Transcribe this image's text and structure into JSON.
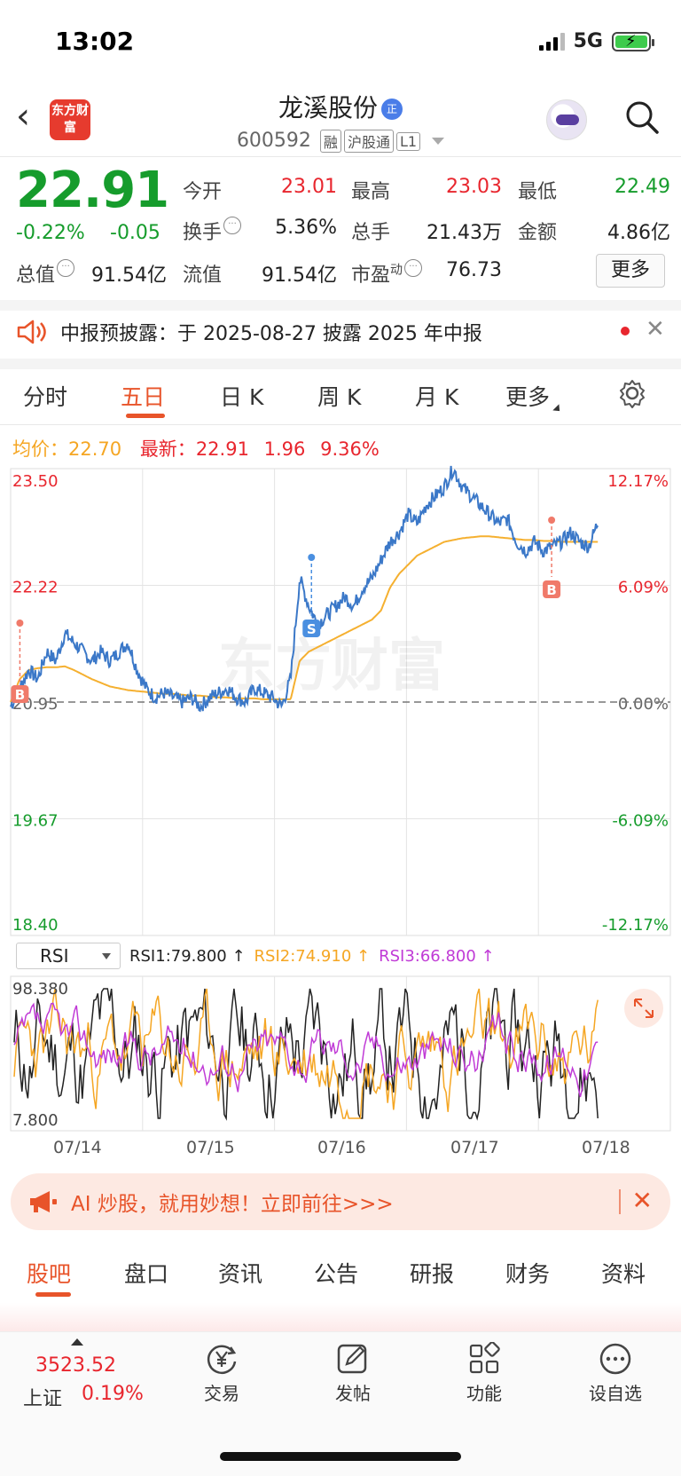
{
  "status": {
    "time": "13:02",
    "network": "5G"
  },
  "header": {
    "logo_text": "东方财富",
    "title": "龙溪股份",
    "badge": "正",
    "code": "600592",
    "tags": [
      "融",
      "沪股通",
      "L1"
    ]
  },
  "quote": {
    "price": "22.91",
    "change_pct": "-0.22%",
    "change": "-0.05",
    "open_label": "今开",
    "open": "23.01",
    "high_label": "最高",
    "high": "23.03",
    "low_label": "最低",
    "low": "22.49",
    "turnover_label": "换手",
    "turnover": "5.36%",
    "volume_label": "总手",
    "volume": "21.43万",
    "amount_label": "金额",
    "amount": "4.86亿",
    "mktcap_label": "总值",
    "mktcap": "91.54亿",
    "float_label": "流值",
    "float": "91.54亿",
    "pe_label": "市盈",
    "pe_sup": "动",
    "pe": "76.73",
    "more_label": "更多"
  },
  "notice": {
    "text": "中报预披露：于 2025-08-27 披露 2025 年中报"
  },
  "kline_tabs": [
    "分时",
    "五日",
    "日 K",
    "周 K",
    "月 K",
    "更多"
  ],
  "avg_bar": {
    "avg_label": "均价：",
    "avg": "22.70",
    "latest_label": "最新：",
    "latest": "22.91",
    "latest_chg": "1.96",
    "latest_pct": "9.36%"
  },
  "chart_data": {
    "type": "line",
    "title": "",
    "watermark": "东方财富",
    "price_axis_labels": [
      "23.50",
      "22.22",
      "20.95",
      "19.67",
      "18.40"
    ],
    "pct_axis_labels": [
      "12.17%",
      "6.09%",
      "0.00%",
      "-6.09%",
      "-12.17%"
    ],
    "ylim": [
      18.4,
      23.5
    ],
    "base_price": 20.95,
    "x": [
      "07/14",
      "07/15",
      "07/16",
      "07/17",
      "07/18"
    ],
    "series": [],
    "price_points": [
      20.9,
      21.1,
      21.3,
      21.2,
      21.5,
      21.4,
      21.7,
      21.6,
      21.5,
      21.4,
      21.5,
      21.4,
      21.5,
      21.6,
      21.3,
      21.1,
      21.0,
      21.05,
      21.0,
      20.95,
      21.0,
      20.9,
      21.0,
      21.05,
      21.1,
      21.0,
      20.95,
      21.1,
      21.05,
      21.0,
      20.9,
      21.2,
      22.3,
      22.0,
      21.8,
      21.9,
      22.0,
      22.1,
      22.0,
      22.2,
      22.3,
      22.5,
      22.7,
      22.8,
      23.0,
      22.9,
      23.1,
      23.2,
      23.3,
      23.5,
      23.3,
      23.2,
      23.1,
      23.0,
      22.9,
      22.95,
      22.7,
      22.6,
      22.7,
      22.6,
      22.65,
      22.7,
      22.8,
      22.7,
      22.65,
      22.91
    ],
    "avg_points": [
      20.95,
      21.2,
      21.3,
      21.32,
      21.33,
      21.33,
      21.34,
      21.3,
      21.25,
      21.2,
      21.16,
      21.12,
      21.1,
      21.08,
      21.07,
      21.06,
      21.05,
      21.04,
      21.04,
      21.03,
      21.02,
      21.02,
      21.01,
      21.0,
      21.0,
      20.99,
      20.99,
      20.99,
      20.98,
      20.98,
      20.98,
      20.98,
      21.4,
      21.5,
      21.55,
      21.6,
      21.65,
      21.7,
      21.75,
      21.8,
      21.85,
      21.95,
      22.2,
      22.35,
      22.45,
      22.55,
      22.6,
      22.65,
      22.7,
      22.72,
      22.74,
      22.75,
      22.76,
      22.76,
      22.75,
      22.74,
      22.73,
      22.72,
      22.72,
      22.71,
      22.71,
      22.7,
      22.7,
      22.7,
      22.7,
      22.7
    ],
    "trade_marks": [
      {
        "label": "B",
        "day_index": 0.07
      },
      {
        "label": "S",
        "day_index": 2.28
      },
      {
        "label": "B",
        "day_index": 4.1
      }
    ]
  },
  "rsi": {
    "selector": "RSI",
    "rsi1": "RSI1:79.800 ↑",
    "rsi2": "RSI2:74.910 ↑",
    "rsi3": "RSI3:66.800 ↑",
    "max": "98.380",
    "min": "7.800"
  },
  "ai_banner": {
    "text": "AI 炒股，就用妙想！立即前往>>>"
  },
  "bottom_tabs": [
    "股吧",
    "盘口",
    "资讯",
    "公告",
    "研报",
    "财务",
    "资料"
  ],
  "bottom_nav": {
    "index_value": "3523.52",
    "index_name": "上证",
    "index_pct": "0.19%",
    "items": [
      "交易",
      "发帖",
      "功能",
      "设自选"
    ]
  },
  "colors": {
    "up": "#e8262e",
    "down": "#169c2c",
    "accent": "#e8542a",
    "price_line": "#3b78c8",
    "avg_line": "#f5b030"
  }
}
